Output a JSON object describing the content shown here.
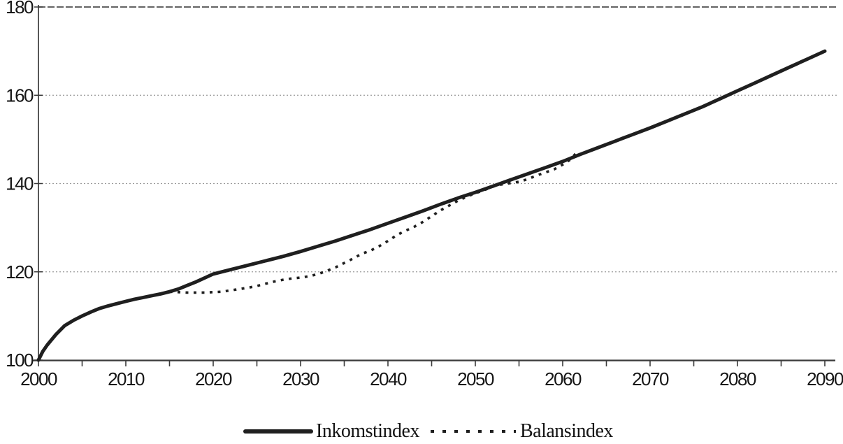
{
  "page": {
    "background": "#ffffff"
  },
  "legend": {
    "items": [
      {
        "label": "Inkomstindex",
        "swatch": "solid-line"
      },
      {
        "label": "Balansindex",
        "swatch": "dotted-line"
      }
    ]
  },
  "chart_data": {
    "type": "line",
    "title": "",
    "xlabel": "",
    "ylabel": "",
    "xlim": [
      2000,
      2090
    ],
    "ylim": [
      100,
      180
    ],
    "x_tick_labels": [
      2000,
      2010,
      2020,
      2030,
      2040,
      2050,
      2060,
      2070,
      2080,
      2090
    ],
    "x_minor_ticks": [
      2000,
      2005,
      2010,
      2015,
      2020,
      2025,
      2030,
      2035,
      2040,
      2045,
      2050,
      2055,
      2060,
      2065,
      2070,
      2075,
      2080,
      2085,
      2090
    ],
    "y_tick_labels": [
      100,
      120,
      140,
      160,
      180
    ],
    "gridlines_y": [
      120,
      140,
      160,
      180
    ],
    "grid": "horizontal-dotted",
    "legend_position": "bottom-center",
    "colors": {
      "line": "#1f1f1f",
      "grid": "#9a9a9a",
      "grid_top": "#4f4f4f",
      "axis": "#3a3a3a",
      "text": "#161616",
      "background": "#ffffff"
    },
    "series": [
      {
        "name": "Inkomstindex",
        "line_style": "solid",
        "points": [
          [
            2000,
            100
          ],
          [
            2000.5,
            102
          ],
          [
            2001,
            103.4
          ],
          [
            2002,
            105.8
          ],
          [
            2003,
            107.8
          ],
          [
            2004,
            109
          ],
          [
            2005,
            110
          ],
          [
            2006,
            110.9
          ],
          [
            2007,
            111.7
          ],
          [
            2008,
            112.3
          ],
          [
            2009,
            112.8
          ],
          [
            2010,
            113.3
          ],
          [
            2011,
            113.8
          ],
          [
            2012,
            114.2
          ],
          [
            2013,
            114.6
          ],
          [
            2014,
            115
          ],
          [
            2015,
            115.5
          ],
          [
            2016,
            116.1
          ],
          [
            2017,
            116.9
          ],
          [
            2018,
            117.7
          ],
          [
            2019,
            118.6
          ],
          [
            2020,
            119.5
          ],
          [
            2022,
            120.5
          ],
          [
            2024,
            121.5
          ],
          [
            2026,
            122.5
          ],
          [
            2028,
            123.5
          ],
          [
            2030,
            124.6
          ],
          [
            2032,
            125.8
          ],
          [
            2034,
            127
          ],
          [
            2036,
            128.3
          ],
          [
            2038,
            129.6
          ],
          [
            2040,
            131
          ],
          [
            2042,
            132.4
          ],
          [
            2044,
            133.8
          ],
          [
            2046,
            135.3
          ],
          [
            2048,
            136.7
          ],
          [
            2050,
            138
          ],
          [
            2052,
            139.4
          ],
          [
            2054,
            140.8
          ],
          [
            2056,
            142.2
          ],
          [
            2058,
            143.6
          ],
          [
            2060,
            145
          ],
          [
            2062,
            146.6
          ],
          [
            2064,
            148.1
          ],
          [
            2066,
            149.6
          ],
          [
            2068,
            151.1
          ],
          [
            2070,
            152.6
          ],
          [
            2072,
            154.2
          ],
          [
            2074,
            155.8
          ],
          [
            2076,
            157.4
          ],
          [
            2078,
            159.2
          ],
          [
            2080,
            161
          ],
          [
            2082,
            162.8
          ],
          [
            2084,
            164.6
          ],
          [
            2086,
            166.4
          ],
          [
            2088,
            168.2
          ],
          [
            2090,
            170
          ]
        ]
      },
      {
        "name": "Balansindex",
        "line_style": "dotted",
        "points": [
          [
            2015,
            115.5
          ],
          [
            2016,
            115.4
          ],
          [
            2017,
            115.3
          ],
          [
            2018,
            115.3
          ],
          [
            2019,
            115.3
          ],
          [
            2020,
            115.4
          ],
          [
            2021,
            115.5
          ],
          [
            2022,
            115.8
          ],
          [
            2023,
            116.1
          ],
          [
            2024,
            116.4
          ],
          [
            2025,
            116.8
          ],
          [
            2026,
            117.3
          ],
          [
            2027,
            117.8
          ],
          [
            2028,
            118.2
          ],
          [
            2029,
            118.5
          ],
          [
            2030,
            118.7
          ],
          [
            2031,
            119
          ],
          [
            2032,
            119.5
          ],
          [
            2033,
            120.2
          ],
          [
            2034,
            121
          ],
          [
            2035,
            122
          ],
          [
            2036,
            123
          ],
          [
            2037,
            124.1
          ],
          [
            2038,
            124.8
          ],
          [
            2039,
            125.8
          ],
          [
            2040,
            127
          ],
          [
            2041,
            128.3
          ],
          [
            2042,
            129.3
          ],
          [
            2043,
            130.2
          ],
          [
            2044,
            131.3
          ],
          [
            2045,
            132.6
          ],
          [
            2046,
            133.9
          ],
          [
            2047,
            135
          ],
          [
            2048,
            136.1
          ],
          [
            2049,
            137
          ],
          [
            2050,
            137.8
          ],
          [
            2051,
            138.5
          ],
          [
            2052,
            139.3
          ],
          [
            2053,
            139.8
          ],
          [
            2054,
            140.1
          ],
          [
            2055,
            140.4
          ],
          [
            2056,
            141
          ],
          [
            2057,
            141.8
          ],
          [
            2058,
            142.5
          ],
          [
            2059,
            143.2
          ],
          [
            2060,
            144.3
          ],
          [
            2061,
            145.6
          ],
          [
            2061.8,
            147.6
          ]
        ]
      }
    ]
  }
}
